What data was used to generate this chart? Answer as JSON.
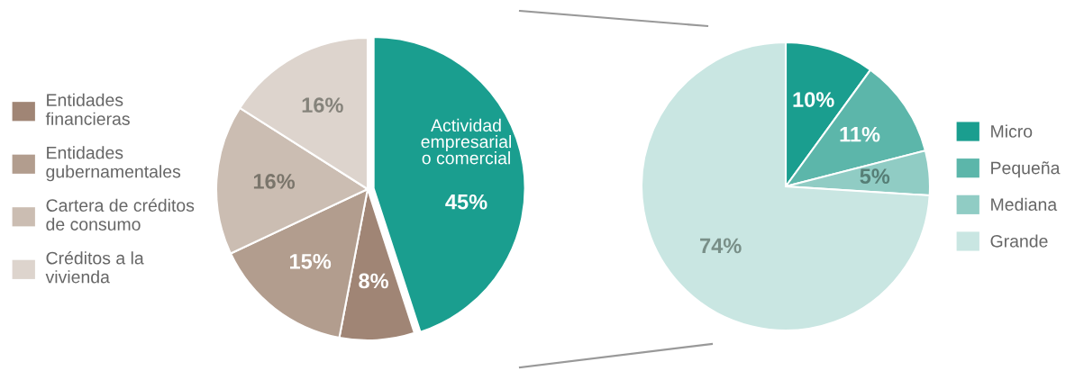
{
  "chart_data": [
    {
      "type": "pie",
      "categories": [
        null,
        "Entidades\nfinancieras",
        "Entidades\ngubernamentales",
        "Cartera de créditos\nde consumo",
        "Créditos a la\nvivienda"
      ],
      "values": [
        45,
        8,
        15,
        16,
        16
      ],
      "value_labels": [
        "45%",
        "8%",
        "15%",
        "16%",
        "16%"
      ],
      "colors": [
        "#1a9e8f",
        "#a08575",
        "#b29d8e",
        "#cbbdb2",
        "#ddd4cd"
      ],
      "annotations": [
        "Actividad\nempresarial\no comercial"
      ],
      "legend": "left"
    },
    {
      "type": "pie",
      "categories": [
        "Micro",
        "Pequeña",
        "Mediana",
        "Grande"
      ],
      "values": [
        10,
        11,
        5,
        74
      ],
      "value_labels": [
        "10%",
        "11%",
        "5%",
        "74%"
      ],
      "colors": [
        "#1a9e8f",
        "#5cb6aa",
        "#90ccc4",
        "#c9e6e2"
      ],
      "legend": "right"
    }
  ]
}
